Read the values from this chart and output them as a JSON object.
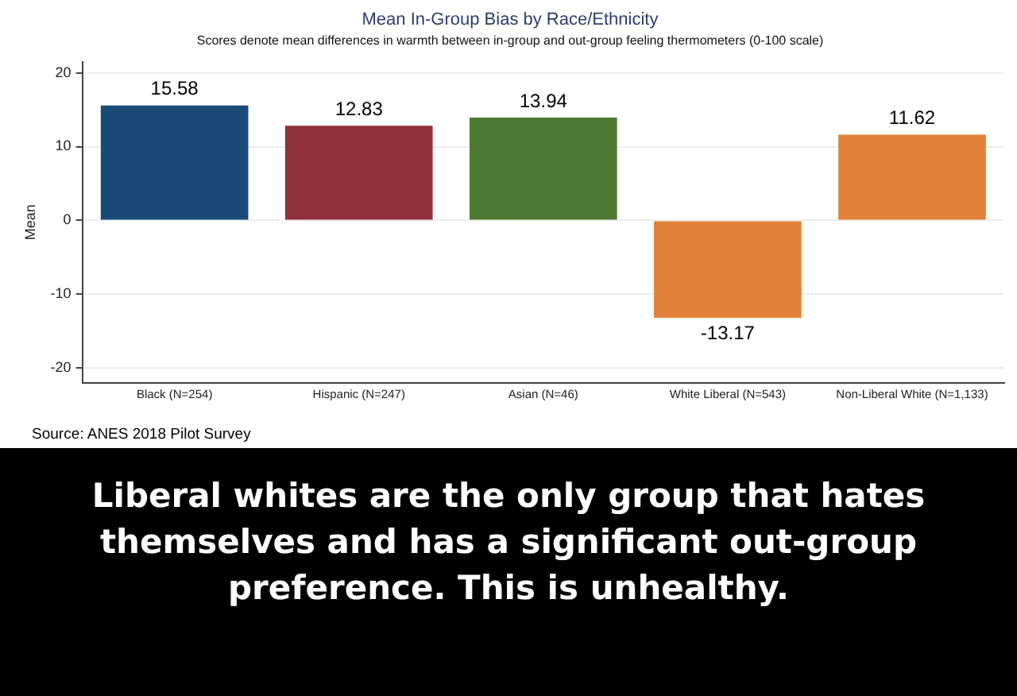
{
  "chart_data": {
    "type": "bar",
    "title": "Mean In-Group Bias by Race/Ethnicity",
    "subtitle": "Scores denote mean differences in warmth between in-group and out-group feeling thermometers (0-100 scale)",
    "ylabel": "Mean",
    "categories": [
      "Black (N=254)",
      "Hispanic (N=247)",
      "Asian (N=46)",
      "White Liberal (N=543)",
      "Non-Liberal White (N=1,133)"
    ],
    "values": [
      15.58,
      12.83,
      13.94,
      -13.17,
      11.62
    ],
    "colors": [
      "#1a4a78",
      "#923139",
      "#4e7a33",
      "#e3813b",
      "#e3813b"
    ],
    "ylim": [
      -22,
      21.5
    ],
    "yticks": [
      -20,
      -10,
      0,
      10,
      20
    ],
    "grid": "y",
    "data_labels": true,
    "annotations": [
      "Source: ANES 2018 Pilot Survey",
      "Liberal whites are the only group that hates themselves and has a significant out-group preference. This is unhealthy."
    ]
  }
}
